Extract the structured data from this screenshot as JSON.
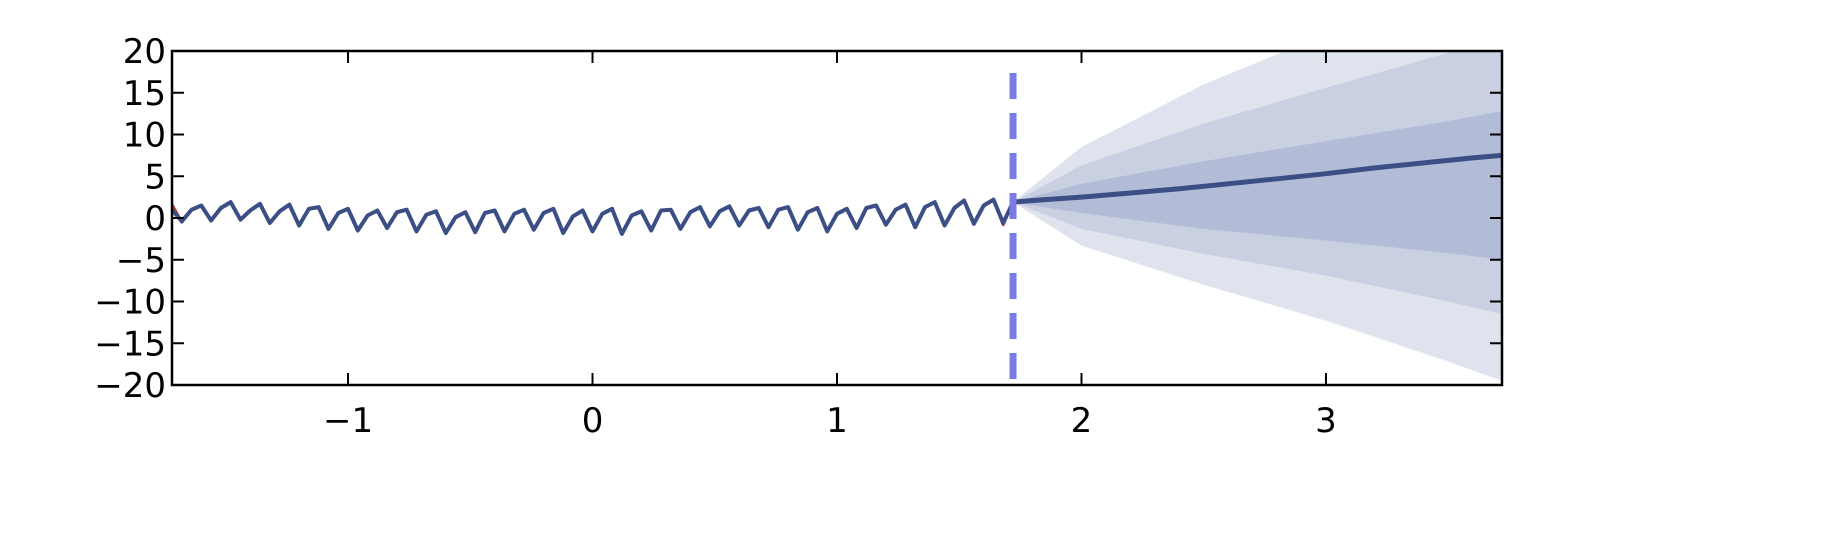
{
  "chart_data": {
    "type": "line",
    "title": "",
    "xlabel": "",
    "ylabel": "",
    "xlim": [
      -1.72,
      3.72
    ],
    "ylim": [
      -20,
      20
    ],
    "grid": false,
    "x_ticks": [
      -1,
      0,
      1,
      2,
      3
    ],
    "x_tick_labels": [
      "−1",
      "0",
      "1",
      "2",
      "3"
    ],
    "y_ticks": [
      20,
      15,
      10,
      5,
      0,
      -5,
      -10,
      -15,
      -20
    ],
    "y_tick_labels": [
      "20",
      "15",
      "10",
      "5",
      "0",
      "−5",
      "−10",
      "−15",
      "−20"
    ],
    "forecast_start": 1.72,
    "observed": {
      "color": "#cc3333",
      "x": [
        -1.72,
        -1.68,
        -1.64,
        -1.6,
        -1.56,
        -1.52,
        -1.48,
        -1.44,
        -1.4,
        -1.36,
        -1.32,
        -1.28,
        -1.24,
        -1.2,
        -1.16,
        -1.12,
        -1.08,
        -1.04,
        -1.0,
        -0.96,
        -0.92,
        -0.88,
        -0.84,
        -0.8,
        -0.76,
        -0.72,
        -0.68,
        -0.64,
        -0.6,
        -0.56,
        -0.52,
        -0.48,
        -0.44,
        -0.4,
        -0.36,
        -0.32,
        -0.28,
        -0.24,
        -0.2,
        -0.16,
        -0.12,
        -0.08,
        -0.04,
        0.0,
        0.04,
        0.08,
        0.12,
        0.16,
        0.2,
        0.24,
        0.28,
        0.32,
        0.36,
        0.4,
        0.44,
        0.48,
        0.52,
        0.56,
        0.6,
        0.64,
        0.68,
        0.72,
        0.76,
        0.8,
        0.84,
        0.88,
        0.92,
        0.96,
        1.0,
        1.04,
        1.08,
        1.12,
        1.16,
        1.2,
        1.24,
        1.28,
        1.32,
        1.36,
        1.4,
        1.44,
        1.48,
        1.52,
        1.56,
        1.6,
        1.64,
        1.68,
        1.72
      ],
      "y": [
        1.6,
        -0.5,
        1.0,
        1.5,
        -0.3,
        1.2,
        1.9,
        -0.2,
        0.9,
        1.7,
        -0.6,
        0.8,
        1.6,
        -0.9,
        1.1,
        1.3,
        -1.3,
        0.6,
        1.1,
        -1.5,
        0.3,
        0.9,
        -1.2,
        0.7,
        1.0,
        -1.6,
        0.4,
        0.8,
        -1.8,
        0.1,
        0.7,
        -1.7,
        0.6,
        0.9,
        -1.6,
        0.5,
        1.0,
        -1.4,
        0.6,
        1.1,
        -1.8,
        0.2,
        0.9,
        -1.6,
        0.5,
        1.1,
        -1.9,
        0.3,
        0.8,
        -1.5,
        0.9,
        1.0,
        -1.3,
        0.7,
        1.3,
        -1.0,
        0.8,
        1.4,
        -0.9,
        0.9,
        1.2,
        -1.1,
        1.0,
        1.3,
        -1.4,
        0.7,
        1.2,
        -1.6,
        0.5,
        1.1,
        -1.2,
        1.2,
        1.5,
        -0.8,
        1.0,
        1.6,
        -1.1,
        1.3,
        1.9,
        -0.9,
        1.2,
        2.1,
        -0.7,
        1.5,
        2.2,
        -0.8,
        1.9
      ]
    },
    "fitted": {
      "color": "#3b4f86",
      "x": [
        -1.72,
        -1.68,
        -1.64,
        -1.6,
        -1.56,
        -1.52,
        -1.48,
        -1.44,
        -1.4,
        -1.36,
        -1.32,
        -1.28,
        -1.24,
        -1.2,
        -1.16,
        -1.12,
        -1.08,
        -1.04,
        -1.0,
        -0.96,
        -0.92,
        -0.88,
        -0.84,
        -0.8,
        -0.76,
        -0.72,
        -0.68,
        -0.64,
        -0.6,
        -0.56,
        -0.52,
        -0.48,
        -0.44,
        -0.4,
        -0.36,
        -0.32,
        -0.28,
        -0.24,
        -0.2,
        -0.16,
        -0.12,
        -0.08,
        -0.04,
        0.0,
        0.04,
        0.08,
        0.12,
        0.16,
        0.2,
        0.24,
        0.28,
        0.32,
        0.36,
        0.4,
        0.44,
        0.48,
        0.52,
        0.56,
        0.6,
        0.64,
        0.68,
        0.72,
        0.76,
        0.8,
        0.84,
        0.88,
        0.92,
        0.96,
        1.0,
        1.04,
        1.08,
        1.12,
        1.16,
        1.2,
        1.24,
        1.28,
        1.32,
        1.36,
        1.4,
        1.44,
        1.48,
        1.52,
        1.56,
        1.6,
        1.64,
        1.68,
        1.72
      ],
      "y": [
        1.0,
        -0.4,
        1.0,
        1.5,
        -0.3,
        1.2,
        1.9,
        -0.2,
        0.9,
        1.7,
        -0.6,
        0.8,
        1.6,
        -0.9,
        1.1,
        1.3,
        -1.3,
        0.6,
        1.1,
        -1.5,
        0.3,
        0.9,
        -1.2,
        0.7,
        1.0,
        -1.6,
        0.4,
        0.8,
        -1.8,
        0.1,
        0.7,
        -1.7,
        0.6,
        0.9,
        -1.6,
        0.5,
        1.0,
        -1.4,
        0.6,
        1.1,
        -1.8,
        0.2,
        0.9,
        -1.6,
        0.5,
        1.1,
        -1.9,
        0.3,
        0.8,
        -1.5,
        0.9,
        1.0,
        -1.3,
        0.7,
        1.3,
        -1.0,
        0.8,
        1.4,
        -0.9,
        0.9,
        1.2,
        -1.1,
        1.0,
        1.3,
        -1.4,
        0.7,
        1.2,
        -1.6,
        0.5,
        1.1,
        -1.2,
        1.2,
        1.5,
        -0.8,
        1.0,
        1.6,
        -1.1,
        1.3,
        1.9,
        -0.9,
        1.2,
        2.1,
        -0.7,
        1.5,
        2.2,
        -0.6,
        1.9
      ]
    },
    "forecast": {
      "color": "#3b4f86",
      "x": [
        1.72,
        1.8,
        2.0,
        2.2,
        2.4,
        2.6,
        2.8,
        3.0,
        3.2,
        3.4,
        3.6,
        3.72
      ],
      "y": [
        1.9,
        2.1,
        2.5,
        3.0,
        3.5,
        4.1,
        4.7,
        5.3,
        6.0,
        6.6,
        7.2,
        7.5
      ]
    },
    "uncertainty_bands": {
      "colors": [
        "#dfe3ee",
        "#c9d0e2",
        "#b2bcd7"
      ],
      "x": [
        1.72,
        2.0,
        2.5,
        3.0,
        3.5,
        3.72
      ],
      "bands": [
        {
          "lower": [
            1.9,
            -3.3,
            -8.0,
            -12.3,
            -17.2,
            -19.5
          ],
          "upper": [
            1.9,
            8.5,
            16.0,
            22.0,
            27.0,
            30.0
          ]
        },
        {
          "lower": [
            1.9,
            -1.3,
            -4.3,
            -6.9,
            -10.0,
            -11.5
          ],
          "upper": [
            1.9,
            6.3,
            11.3,
            15.6,
            19.8,
            22.0
          ]
        },
        {
          "lower": [
            1.9,
            0.6,
            -1.3,
            -2.7,
            -4.2,
            -5.0
          ],
          "upper": [
            1.9,
            4.1,
            6.8,
            9.2,
            11.6,
            12.8
          ]
        }
      ]
    }
  }
}
